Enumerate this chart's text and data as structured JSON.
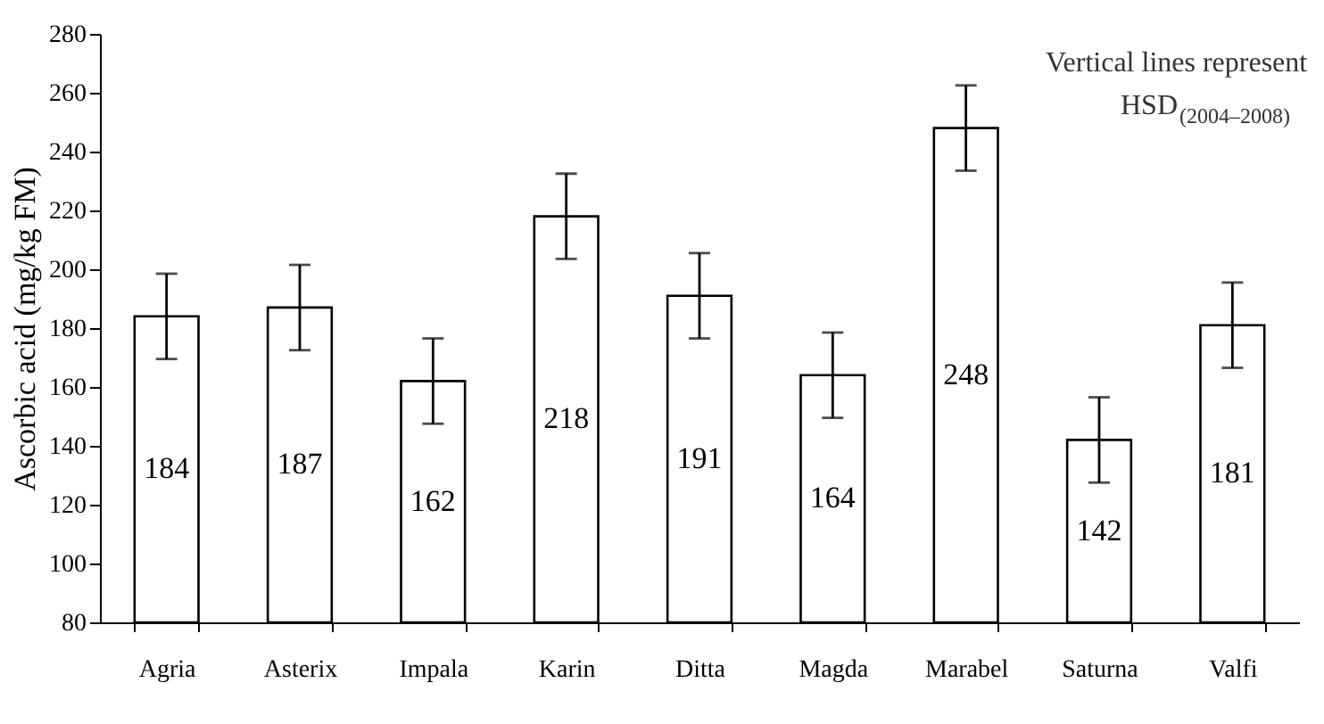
{
  "chart_data": {
    "type": "bar",
    "ylabel": "Ascorbic acid (mg/kg FM)",
    "categories": [
      "Agria",
      "Asterix",
      "Impala",
      "Karin",
      "Ditta",
      "Magda",
      "Marabel",
      "Saturna",
      "Valfi"
    ],
    "values": [
      184,
      187,
      162,
      218,
      191,
      164,
      248,
      142,
      181
    ],
    "errors": [
      14.5,
      14.5,
      14.5,
      14.5,
      14.5,
      14.5,
      14.5,
      14.5,
      14.5
    ],
    "color": "#ffffff",
    "data_labels": true,
    "ylim": [
      80,
      280
    ],
    "yticks": [
      80,
      100,
      120,
      140,
      160,
      180,
      200,
      220,
      240,
      260,
      280
    ],
    "grid": false,
    "annotations": [
      "Vertical lines represent",
      "HSD$_{(2004–2008)}$"
    ]
  }
}
